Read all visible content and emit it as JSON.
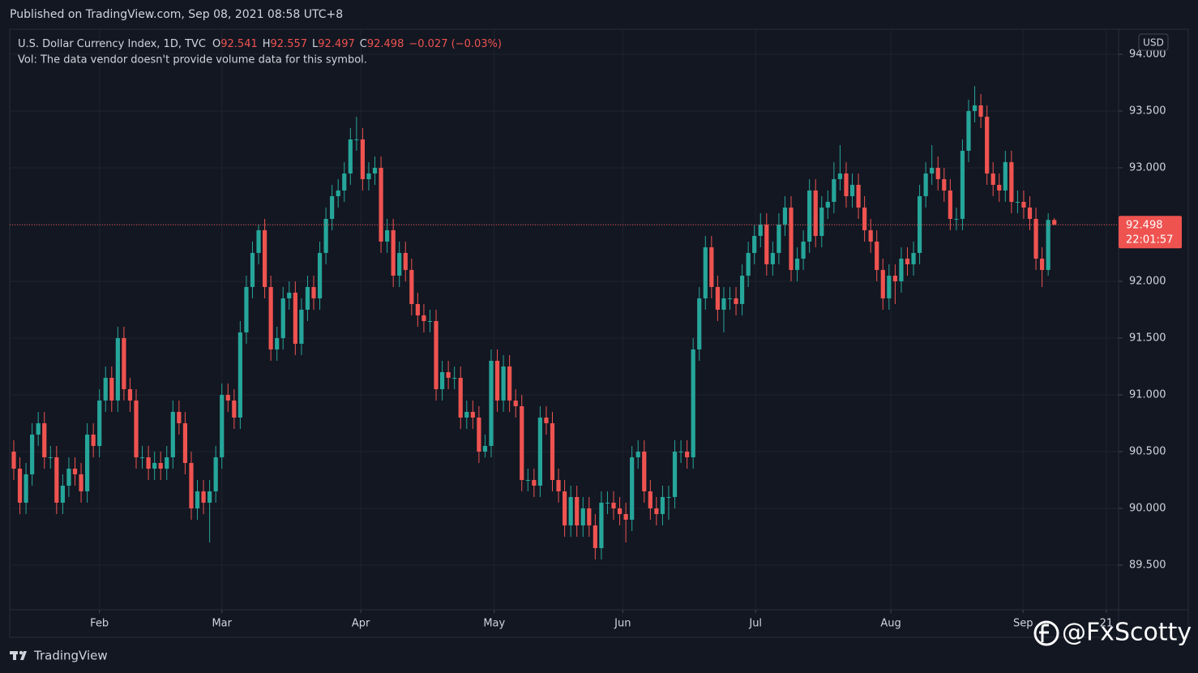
{
  "chart_data": {
    "type": "candlestick",
    "header": "Published on TradingView.com, Sep 08, 2021 08:58 UTC+8",
    "title": "U.S. Dollar Currency Index, 1D, TVC",
    "legend_labels": [
      "O",
      "H",
      "L",
      "C"
    ],
    "change": "−0.027 (−0.03%)",
    "volume_note": "Vol: The data vendor doesn't provide volume data for this symbol.",
    "currency": "USD",
    "countdown": "22:01:57",
    "footer": "TradingView",
    "watermark": "@FxScotty",
    "up_color": "#26a69a",
    "down_color": "#ef5350",
    "grid": true,
    "ylim": [
      89.107,
      94.221
    ],
    "yticks": [
      {
        "value": 89.5,
        "label": "89.500"
      },
      {
        "value": 90,
        "label": "90.000"
      },
      {
        "value": 90.5,
        "label": "90.500"
      },
      {
        "value": 91,
        "label": "91.000"
      },
      {
        "value": 91.5,
        "label": "91.500"
      },
      {
        "value": 92,
        "label": "92.000"
      },
      {
        "value": 92.5,
        "label": "92.500"
      },
      {
        "value": 93,
        "label": "93.000"
      },
      {
        "value": 93.5,
        "label": "93.500"
      },
      {
        "value": 94,
        "label": "94.000"
      }
    ],
    "xlim": [
      -0.66,
      180.5
    ],
    "xticks": [
      {
        "value": 14,
        "label": "Feb"
      },
      {
        "value": 34,
        "label": "Mar"
      },
      {
        "value": 56.7,
        "label": "Apr"
      },
      {
        "value": 78.5,
        "label": "May"
      },
      {
        "value": 99.5,
        "label": "Jun"
      },
      {
        "value": 121.2,
        "label": "Jul"
      },
      {
        "value": 143.3,
        "label": "Aug"
      },
      {
        "value": 164.9,
        "label": "Sep"
      },
      {
        "value": 178.5,
        "label": "21"
      }
    ],
    "candles": [
      [
        90.5,
        90.6,
        90.25,
        90.35
      ],
      [
        90.35,
        90.45,
        89.95,
        90.05
      ],
      [
        90.05,
        90.4,
        89.95,
        90.3
      ],
      [
        90.3,
        90.75,
        90.2,
        90.65
      ],
      [
        90.65,
        90.85,
        90.55,
        90.75
      ],
      [
        90.75,
        90.85,
        90.35,
        90.45
      ],
      [
        90.45,
        90.55,
        90.35,
        90.45
      ],
      [
        90.45,
        90.55,
        89.95,
        90.05
      ],
      [
        90.05,
        90.3,
        89.95,
        90.2
      ],
      [
        90.2,
        90.45,
        90.1,
        90.35
      ],
      [
        90.35,
        90.45,
        90.2,
        90.3
      ],
      [
        90.3,
        90.4,
        90.05,
        90.15
      ],
      [
        90.15,
        90.75,
        90.05,
        90.65
      ],
      [
        90.65,
        90.75,
        90.45,
        90.55
      ],
      [
        90.55,
        91.05,
        90.45,
        90.95
      ],
      [
        90.95,
        91.25,
        90.85,
        91.15
      ],
      [
        91.15,
        91.25,
        90.85,
        90.95
      ],
      [
        90.95,
        91.6,
        90.85,
        91.5
      ],
      [
        91.5,
        91.6,
        90.95,
        91.05
      ],
      [
        91.05,
        91.15,
        90.85,
        90.95
      ],
      [
        90.95,
        91.05,
        90.35,
        90.45
      ],
      [
        90.45,
        90.55,
        90.35,
        90.45
      ],
      [
        90.45,
        90.55,
        90.25,
        90.35
      ],
      [
        90.35,
        90.5,
        90.25,
        90.4
      ],
      [
        90.4,
        90.5,
        90.25,
        90.35
      ],
      [
        90.35,
        90.55,
        90.25,
        90.45
      ],
      [
        90.45,
        90.95,
        90.35,
        90.85
      ],
      [
        90.85,
        90.95,
        90.65,
        90.75
      ],
      [
        90.75,
        90.85,
        90.3,
        90.4
      ],
      [
        90.4,
        90.5,
        89.9,
        90.0
      ],
      [
        90.0,
        90.25,
        89.9,
        90.15
      ],
      [
        90.15,
        90.25,
        89.95,
        90.05
      ],
      [
        90.05,
        90.25,
        89.7,
        90.15
      ],
      [
        90.15,
        90.55,
        90.05,
        90.45
      ],
      [
        90.45,
        91.1,
        90.35,
        91.0
      ],
      [
        91.0,
        91.1,
        90.85,
        90.95
      ],
      [
        90.95,
        91.05,
        90.7,
        90.8
      ],
      [
        90.8,
        91.65,
        90.7,
        91.55
      ],
      [
        91.55,
        92.05,
        91.45,
        91.95
      ],
      [
        91.95,
        92.35,
        91.85,
        92.25
      ],
      [
        92.25,
        92.5,
        92.15,
        92.45
      ],
      [
        92.45,
        92.55,
        91.85,
        91.95
      ],
      [
        91.95,
        92.05,
        91.3,
        91.4
      ],
      [
        91.4,
        91.6,
        91.3,
        91.5
      ],
      [
        91.5,
        91.95,
        91.4,
        91.85
      ],
      [
        91.85,
        92.0,
        91.75,
        91.9
      ],
      [
        91.9,
        92.0,
        91.35,
        91.45
      ],
      [
        91.45,
        91.85,
        91.35,
        91.75
      ],
      [
        91.75,
        92.05,
        91.65,
        91.95
      ],
      [
        91.95,
        92.05,
        91.75,
        91.85
      ],
      [
        91.85,
        92.35,
        91.75,
        92.25
      ],
      [
        92.25,
        92.65,
        92.15,
        92.55
      ],
      [
        92.55,
        92.85,
        92.45,
        92.75
      ],
      [
        92.75,
        92.9,
        92.65,
        92.8
      ],
      [
        92.8,
        93.05,
        92.7,
        92.95
      ],
      [
        92.95,
        93.35,
        92.85,
        93.25
      ],
      [
        93.25,
        93.45,
        93.15,
        93.25
      ],
      [
        93.25,
        93.35,
        92.8,
        92.9
      ],
      [
        92.9,
        93.05,
        92.8,
        92.95
      ],
      [
        92.95,
        93.1,
        92.85,
        93.0
      ],
      [
        93.0,
        93.1,
        92.25,
        92.35
      ],
      [
        92.35,
        92.55,
        92.25,
        92.45
      ],
      [
        92.45,
        92.55,
        91.95,
        92.05
      ],
      [
        92.05,
        92.35,
        91.95,
        92.25
      ],
      [
        92.25,
        92.35,
        92.0,
        92.1
      ],
      [
        92.1,
        92.2,
        91.7,
        91.8
      ],
      [
        91.8,
        91.9,
        91.6,
        91.7
      ],
      [
        91.7,
        91.8,
        91.55,
        91.65
      ],
      [
        91.65,
        91.75,
        91.55,
        91.65
      ],
      [
        91.65,
        91.75,
        90.95,
        91.05
      ],
      [
        91.05,
        91.3,
        90.95,
        91.2
      ],
      [
        91.2,
        91.3,
        91.05,
        91.15
      ],
      [
        91.15,
        91.25,
        91.05,
        91.15
      ],
      [
        91.15,
        91.25,
        90.7,
        90.8
      ],
      [
        90.8,
        90.95,
        90.7,
        90.85
      ],
      [
        90.85,
        90.95,
        90.7,
        90.8
      ],
      [
        90.8,
        90.9,
        90.4,
        90.5
      ],
      [
        90.5,
        90.65,
        90.45,
        90.55
      ],
      [
        90.55,
        91.4,
        90.45,
        91.3
      ],
      [
        91.3,
        91.4,
        90.85,
        90.95
      ],
      [
        90.95,
        91.35,
        90.85,
        91.25
      ],
      [
        91.25,
        91.35,
        90.85,
        90.95
      ],
      [
        90.95,
        91.05,
        90.8,
        90.9
      ],
      [
        90.9,
        91.0,
        90.15,
        90.25
      ],
      [
        90.25,
        90.35,
        90.15,
        90.25
      ],
      [
        90.25,
        90.35,
        90.1,
        90.2
      ],
      [
        90.2,
        90.9,
        90.1,
        90.8
      ],
      [
        90.8,
        90.9,
        90.65,
        90.75
      ],
      [
        90.75,
        90.85,
        90.15,
        90.25
      ],
      [
        90.25,
        90.35,
        90.05,
        90.15
      ],
      [
        90.15,
        90.25,
        89.75,
        89.85
      ],
      [
        89.85,
        90.2,
        89.75,
        90.1
      ],
      [
        90.1,
        90.2,
        89.75,
        89.85
      ],
      [
        89.85,
        90.1,
        89.75,
        90.0
      ],
      [
        90.0,
        90.1,
        89.75,
        89.85
      ],
      [
        89.85,
        89.95,
        89.55,
        89.65
      ],
      [
        89.65,
        90.15,
        89.55,
        90.05
      ],
      [
        90.05,
        90.15,
        89.95,
        90.05
      ],
      [
        90.05,
        90.15,
        89.9,
        90.0
      ],
      [
        90.0,
        90.1,
        89.85,
        89.95
      ],
      [
        89.95,
        90.05,
        89.7,
        89.9
      ],
      [
        89.9,
        90.55,
        89.8,
        90.45
      ],
      [
        90.45,
        90.6,
        90.35,
        90.5
      ],
      [
        90.5,
        90.6,
        90.05,
        90.15
      ],
      [
        90.15,
        90.25,
        89.9,
        90.0
      ],
      [
        90.0,
        90.1,
        89.85,
        89.95
      ],
      [
        89.95,
        90.2,
        89.85,
        90.1
      ],
      [
        90.1,
        90.2,
        89.9,
        90.1
      ],
      [
        90.1,
        90.6,
        90.0,
        90.5
      ],
      [
        90.5,
        90.6,
        90.4,
        90.5
      ],
      [
        90.5,
        90.6,
        90.35,
        90.45
      ],
      [
        90.45,
        91.5,
        90.35,
        91.4
      ],
      [
        91.4,
        91.95,
        91.3,
        91.85
      ],
      [
        91.85,
        92.4,
        91.75,
        92.3
      ],
      [
        92.3,
        92.4,
        91.85,
        91.95
      ],
      [
        91.95,
        92.05,
        91.65,
        91.75
      ],
      [
        91.75,
        91.95,
        91.55,
        91.85
      ],
      [
        91.85,
        91.95,
        91.75,
        91.85
      ],
      [
        91.85,
        91.95,
        91.7,
        91.8
      ],
      [
        91.8,
        92.15,
        91.7,
        92.05
      ],
      [
        92.05,
        92.35,
        91.95,
        92.25
      ],
      [
        92.25,
        92.5,
        92.15,
        92.4
      ],
      [
        92.4,
        92.6,
        92.3,
        92.5
      ],
      [
        92.5,
        92.6,
        92.05,
        92.15
      ],
      [
        92.15,
        92.35,
        92.05,
        92.25
      ],
      [
        92.25,
        92.6,
        92.15,
        92.5
      ],
      [
        92.5,
        92.75,
        92.4,
        92.65
      ],
      [
        92.65,
        92.75,
        92.0,
        92.1
      ],
      [
        92.1,
        92.3,
        92.0,
        92.2
      ],
      [
        92.2,
        92.45,
        92.1,
        92.35
      ],
      [
        92.35,
        92.9,
        92.25,
        92.8
      ],
      [
        92.8,
        92.9,
        92.3,
        92.4
      ],
      [
        92.4,
        92.75,
        92.3,
        92.65
      ],
      [
        92.65,
        92.8,
        92.55,
        92.7
      ],
      [
        92.7,
        93.05,
        92.6,
        92.9
      ],
      [
        92.9,
        93.2,
        92.8,
        92.95
      ],
      [
        92.95,
        93.05,
        92.65,
        92.75
      ],
      [
        92.75,
        92.95,
        92.65,
        92.85
      ],
      [
        92.85,
        92.95,
        92.55,
        92.65
      ],
      [
        92.65,
        92.75,
        92.35,
        92.45
      ],
      [
        92.45,
        92.55,
        92.25,
        92.35
      ],
      [
        92.35,
        92.45,
        92.0,
        92.1
      ],
      [
        92.1,
        92.2,
        91.75,
        91.85
      ],
      [
        91.85,
        92.15,
        91.75,
        92.05
      ],
      [
        92.05,
        92.15,
        91.8,
        92.0
      ],
      [
        92.0,
        92.3,
        91.9,
        92.2
      ],
      [
        92.2,
        92.3,
        92.05,
        92.15
      ],
      [
        92.15,
        92.35,
        92.05,
        92.25
      ],
      [
        92.25,
        92.85,
        92.15,
        92.75
      ],
      [
        92.75,
        93.05,
        92.65,
        92.95
      ],
      [
        92.95,
        93.2,
        92.85,
        93.0
      ],
      [
        93.0,
        93.1,
        92.8,
        92.9
      ],
      [
        92.9,
        93.0,
        92.7,
        92.8
      ],
      [
        92.8,
        92.9,
        92.45,
        92.55
      ],
      [
        92.55,
        92.65,
        92.45,
        92.55
      ],
      [
        92.55,
        93.25,
        92.45,
        93.15
      ],
      [
        93.15,
        93.6,
        93.05,
        93.5
      ],
      [
        93.5,
        93.72,
        93.4,
        93.55
      ],
      [
        93.55,
        93.65,
        93.35,
        93.45
      ],
      [
        93.45,
        93.55,
        92.85,
        92.95
      ],
      [
        92.95,
        93.05,
        92.75,
        92.85
      ],
      [
        92.85,
        92.95,
        92.7,
        92.8
      ],
      [
        92.8,
        93.15,
        92.7,
        93.05
      ],
      [
        93.05,
        93.15,
        92.6,
        92.7
      ],
      [
        92.7,
        92.8,
        92.6,
        92.7
      ],
      [
        92.7,
        92.8,
        92.55,
        92.65
      ],
      [
        92.65,
        92.75,
        92.45,
        92.55
      ],
      [
        92.55,
        92.65,
        92.1,
        92.2
      ],
      [
        92.2,
        92.3,
        91.95,
        92.1
      ],
      [
        92.1,
        92.6,
        92.05,
        92.541
      ],
      [
        92.541,
        92.557,
        92.497,
        92.498
      ]
    ]
  }
}
